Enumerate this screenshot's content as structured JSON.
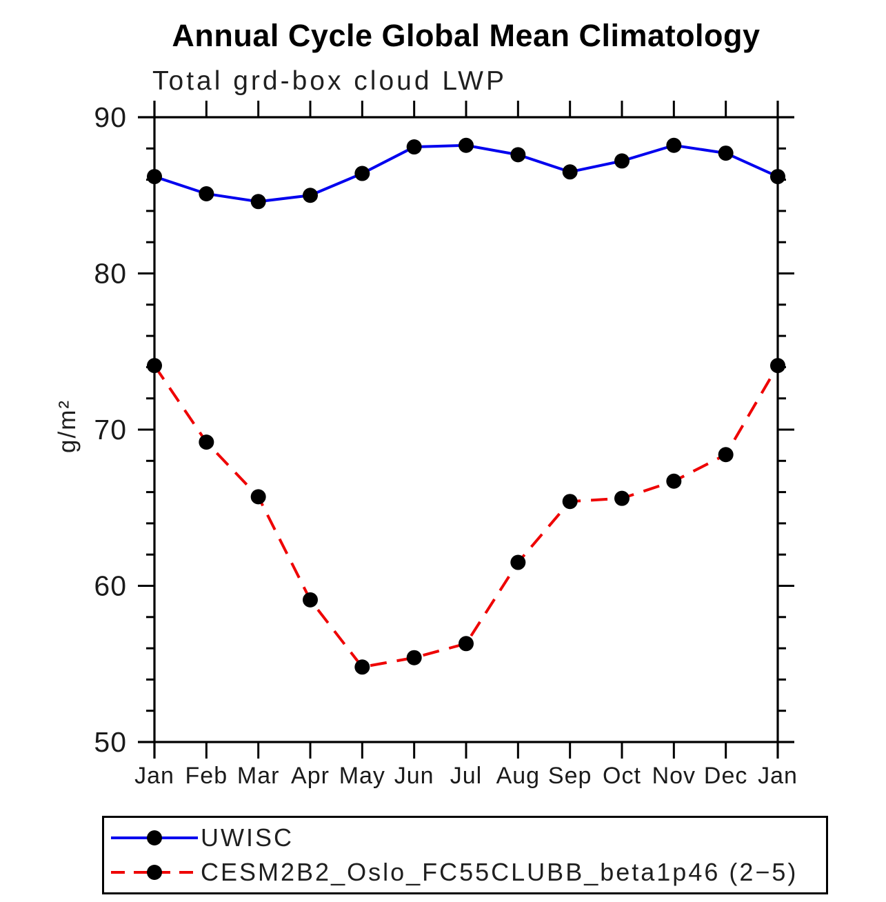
{
  "figure": {
    "background": "#ffffff",
    "text_color": "#000000"
  },
  "chart_data": {
    "type": "line",
    "title": "Annual Cycle Global Mean Climatology",
    "subtitle": "Total grd-box cloud LWP",
    "xlabel": "",
    "ylabel": "g/m²",
    "categories": [
      "Jan",
      "Feb",
      "Mar",
      "Apr",
      "May",
      "Jun",
      "Jul",
      "Aug",
      "Sep",
      "Oct",
      "Nov",
      "Dec",
      "Jan"
    ],
    "ylim": [
      50,
      90
    ],
    "ytick_major": [
      90,
      80,
      70,
      60,
      50
    ],
    "ytick_minor_step": 2,
    "grid": false,
    "legend_position": "bottom",
    "axis_color": "#000000",
    "marker_color": "#000000",
    "series": [
      {
        "name": "UWISC",
        "color": "#0000ee",
        "style": "solid",
        "marker": "circle",
        "values": [
          86.2,
          85.1,
          84.6,
          85.0,
          86.4,
          88.1,
          88.2,
          87.6,
          86.5,
          87.2,
          88.2,
          87.7,
          86.2
        ]
      },
      {
        "name": "CESM2B2_Oslo_FC55CLUBB_beta1p46 (2−5)",
        "color": "#ee0000",
        "style": "dashed",
        "marker": "circle",
        "values": [
          74.1,
          69.2,
          65.7,
          59.1,
          54.8,
          55.4,
          56.3,
          61.5,
          65.4,
          65.6,
          66.7,
          68.4,
          74.1
        ]
      }
    ]
  }
}
